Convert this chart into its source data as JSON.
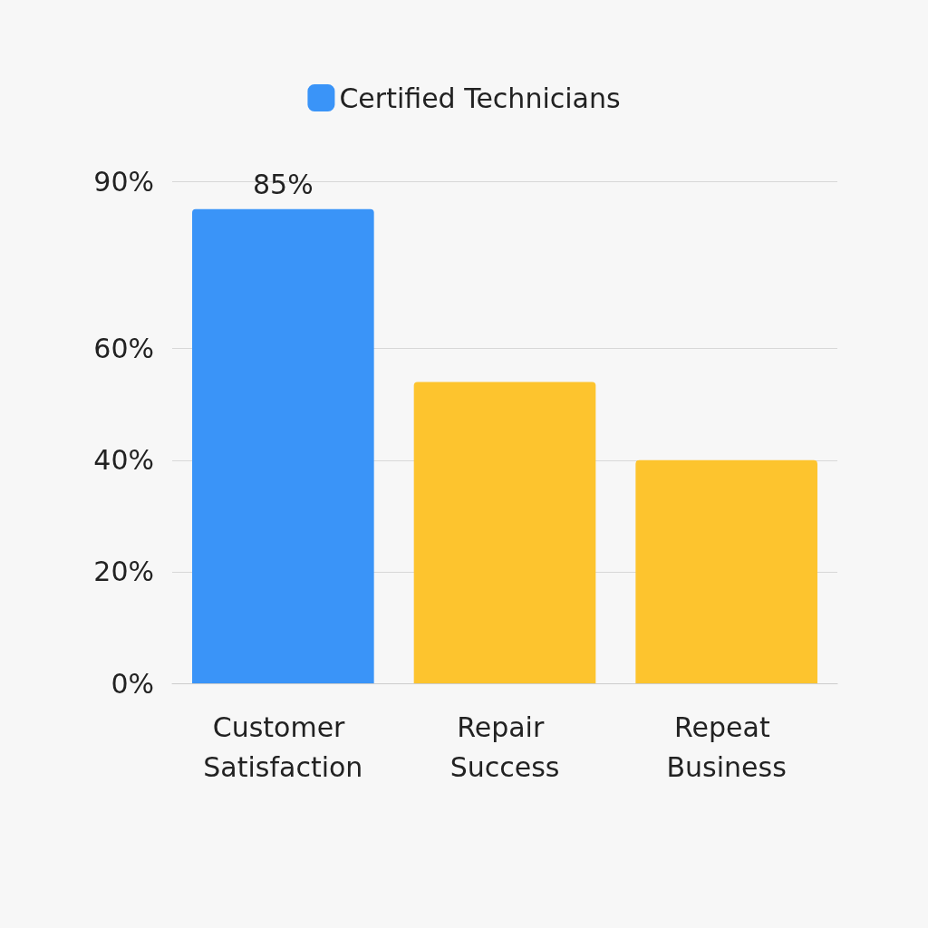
{
  "chart_data": {
    "type": "bar",
    "categories": [
      "Customer Satisfaction",
      "Repair Success",
      "Repeat Business"
    ],
    "series": [
      {
        "name": "Certified Technicians",
        "color": "#3a94f8",
        "colors": [
          "#3a94f8",
          "#fdc42e",
          "#fdc42e"
        ],
        "values": [
          85,
          54,
          40
        ],
        "value_labels": [
          "85%",
          null,
          null
        ]
      }
    ],
    "ylim": [
      0,
      90
    ],
    "yticks": [
      {
        "value": 0,
        "label": "0%"
      },
      {
        "value": 20,
        "label": "20%"
      },
      {
        "value": 40,
        "label": "40%"
      },
      {
        "value": 60,
        "label": "60%"
      },
      {
        "value": 90,
        "label": "90%"
      }
    ],
    "grid": "y",
    "legend": "top"
  }
}
